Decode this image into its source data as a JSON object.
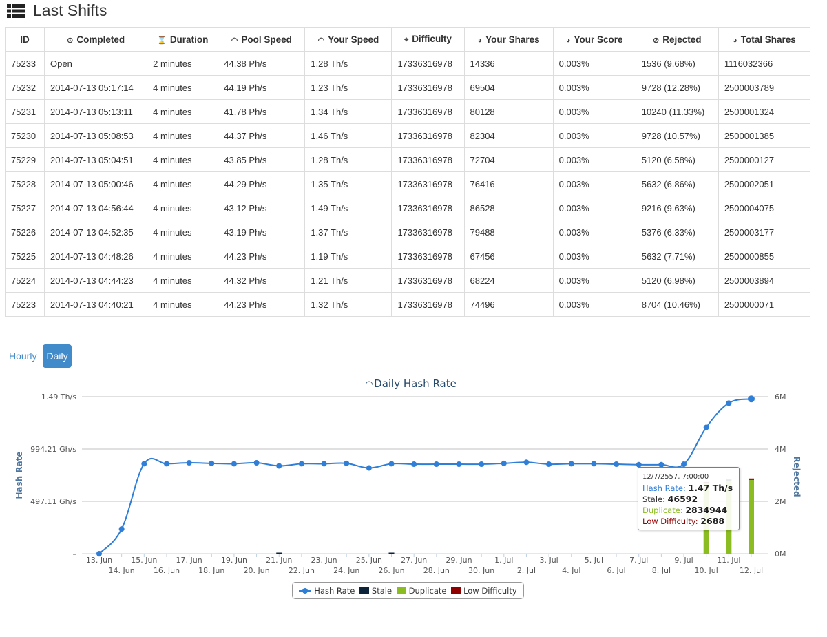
{
  "title": "Last Shifts",
  "table": {
    "headers": [
      {
        "label": "ID",
        "icon": ""
      },
      {
        "label": "Completed",
        "icon": "clock-icon"
      },
      {
        "label": "Duration",
        "icon": "hourglass-icon"
      },
      {
        "label": "Pool Speed",
        "icon": "dashboard-icon"
      },
      {
        "label": "Your Speed",
        "icon": "dashboard-icon"
      },
      {
        "label": "Difficulty",
        "icon": "crosshair-icon"
      },
      {
        "label": "Your Shares",
        "icon": "pie-icon"
      },
      {
        "label": "Your Score",
        "icon": "pie-icon"
      },
      {
        "label": "Rejected",
        "icon": "ban-icon"
      },
      {
        "label": "Total Shares",
        "icon": "pie-icon"
      }
    ],
    "rows": [
      [
        "75233",
        "Open",
        "2 minutes",
        "44.38 Ph/s",
        "1.28 Th/s",
        "17336316978",
        "14336",
        "0.003%",
        "1536 (9.68%)",
        "1116032366"
      ],
      [
        "75232",
        "2014-07-13 05:17:14",
        "4 minutes",
        "44.19 Ph/s",
        "1.23 Th/s",
        "17336316978",
        "69504",
        "0.003%",
        "9728 (12.28%)",
        "2500003789"
      ],
      [
        "75231",
        "2014-07-13 05:13:11",
        "4 minutes",
        "41.78 Ph/s",
        "1.34 Th/s",
        "17336316978",
        "80128",
        "0.003%",
        "10240 (11.33%)",
        "2500001324"
      ],
      [
        "75230",
        "2014-07-13 05:08:53",
        "4 minutes",
        "44.37 Ph/s",
        "1.46 Th/s",
        "17336316978",
        "82304",
        "0.003%",
        "9728 (10.57%)",
        "2500001385"
      ],
      [
        "75229",
        "2014-07-13 05:04:51",
        "4 minutes",
        "43.85 Ph/s",
        "1.28 Th/s",
        "17336316978",
        "72704",
        "0.003%",
        "5120 (6.58%)",
        "2500000127"
      ],
      [
        "75228",
        "2014-07-13 05:00:46",
        "4 minutes",
        "44.29 Ph/s",
        "1.35 Th/s",
        "17336316978",
        "76416",
        "0.003%",
        "5632 (6.86%)",
        "2500002051"
      ],
      [
        "75227",
        "2014-07-13 04:56:44",
        "4 minutes",
        "43.12 Ph/s",
        "1.49 Th/s",
        "17336316978",
        "86528",
        "0.003%",
        "9216 (9.63%)",
        "2500004075"
      ],
      [
        "75226",
        "2014-07-13 04:52:35",
        "4 minutes",
        "43.19 Ph/s",
        "1.37 Th/s",
        "17336316978",
        "79488",
        "0.003%",
        "5376 (6.33%)",
        "2500003177"
      ],
      [
        "75225",
        "2014-07-13 04:48:26",
        "4 minutes",
        "44.23 Ph/s",
        "1.19 Th/s",
        "17336316978",
        "67456",
        "0.003%",
        "5632 (7.71%)",
        "2500000855"
      ],
      [
        "75224",
        "2014-07-13 04:44:23",
        "4 minutes",
        "44.32 Ph/s",
        "1.21 Th/s",
        "17336316978",
        "68224",
        "0.003%",
        "5120 (6.98%)",
        "2500003894"
      ],
      [
        "75223",
        "2014-07-13 04:40:21",
        "4 minutes",
        "44.23 Ph/s",
        "1.32 Th/s",
        "17336316978",
        "74496",
        "0.003%",
        "8704 (10.46%)",
        "2500000071"
      ]
    ]
  },
  "buttons": {
    "hourly": "Hourly",
    "daily": "Daily"
  },
  "tooltip": {
    "date": "12/7/2557, 7:00:00",
    "hash_label": "Hash Rate:",
    "hash_value": "1.47 Th/s",
    "stale_label": "Stale:",
    "stale_value": "46592",
    "dup_label": "Duplicate:",
    "dup_value": "2834944",
    "low_label": "Low Difficulty:",
    "low_value": "2688"
  },
  "chart_data": {
    "type": "line+bar",
    "title": "Daily Hash Rate",
    "ylabel": "Hash Rate",
    "y2label": "Rejected",
    "yticks": [
      "–",
      "497.11 Gh/s",
      "994.21 Gh/s",
      "1.49 Th/s"
    ],
    "ylim_ghs": [
      0,
      1491.32
    ],
    "y2ticks": [
      "0M",
      "2M",
      "4M",
      "6M"
    ],
    "y2lim": [
      0,
      6000000
    ],
    "categories": [
      "13. Jun",
      "14. Jun",
      "15. Jun",
      "16. Jun",
      "17. Jun",
      "18. Jun",
      "19. Jun",
      "20. Jun",
      "21. Jun",
      "22. Jun",
      "23. Jun",
      "24. Jun",
      "25. Jun",
      "26. Jun",
      "27. Jun",
      "28. Jun",
      "29. Jun",
      "30. Jun",
      "1. Jul",
      "2. Jul",
      "3. Jul",
      "4. Jul",
      "5. Jul",
      "6. Jul",
      "7. Jul",
      "8. Jul",
      "9. Jul",
      "10. Jul",
      "11. Jul",
      "12. Jul"
    ],
    "series": [
      {
        "name": "Hash Rate",
        "color": "#2f7ed8",
        "type": "line",
        "values": [
          0,
          235,
          854,
          854,
          863,
          858,
          854,
          863,
          834,
          854,
          854,
          858,
          814,
          854,
          850,
          850,
          850,
          850,
          858,
          868,
          850,
          854,
          854,
          850,
          845,
          845,
          850,
          1200,
          1430,
          1470
        ]
      },
      {
        "name": "Stale",
        "color": "#0d233a",
        "type": "column",
        "values": [
          0,
          0,
          0,
          0,
          0,
          0,
          0,
          0,
          20000,
          0,
          0,
          0,
          0,
          20000,
          0,
          0,
          0,
          0,
          0,
          0,
          0,
          0,
          0,
          0,
          0,
          0,
          0,
          40000,
          45000,
          46592
        ]
      },
      {
        "name": "Duplicate",
        "color": "#8bbc21",
        "type": "column",
        "values": [
          0,
          0,
          0,
          0,
          0,
          0,
          0,
          0,
          0,
          0,
          0,
          0,
          0,
          0,
          0,
          0,
          0,
          0,
          0,
          0,
          0,
          0,
          0,
          0,
          0,
          0,
          0,
          2700000,
          2800000,
          2834944
        ]
      },
      {
        "name": "Low Difficulty",
        "color": "#910000",
        "type": "column",
        "values": [
          0,
          0,
          0,
          0,
          0,
          0,
          0,
          0,
          0,
          0,
          0,
          0,
          0,
          0,
          0,
          0,
          0,
          0,
          0,
          0,
          0,
          0,
          0,
          0,
          0,
          0,
          0,
          2500,
          2600,
          2688
        ]
      }
    ],
    "legend": "bottom-center"
  }
}
